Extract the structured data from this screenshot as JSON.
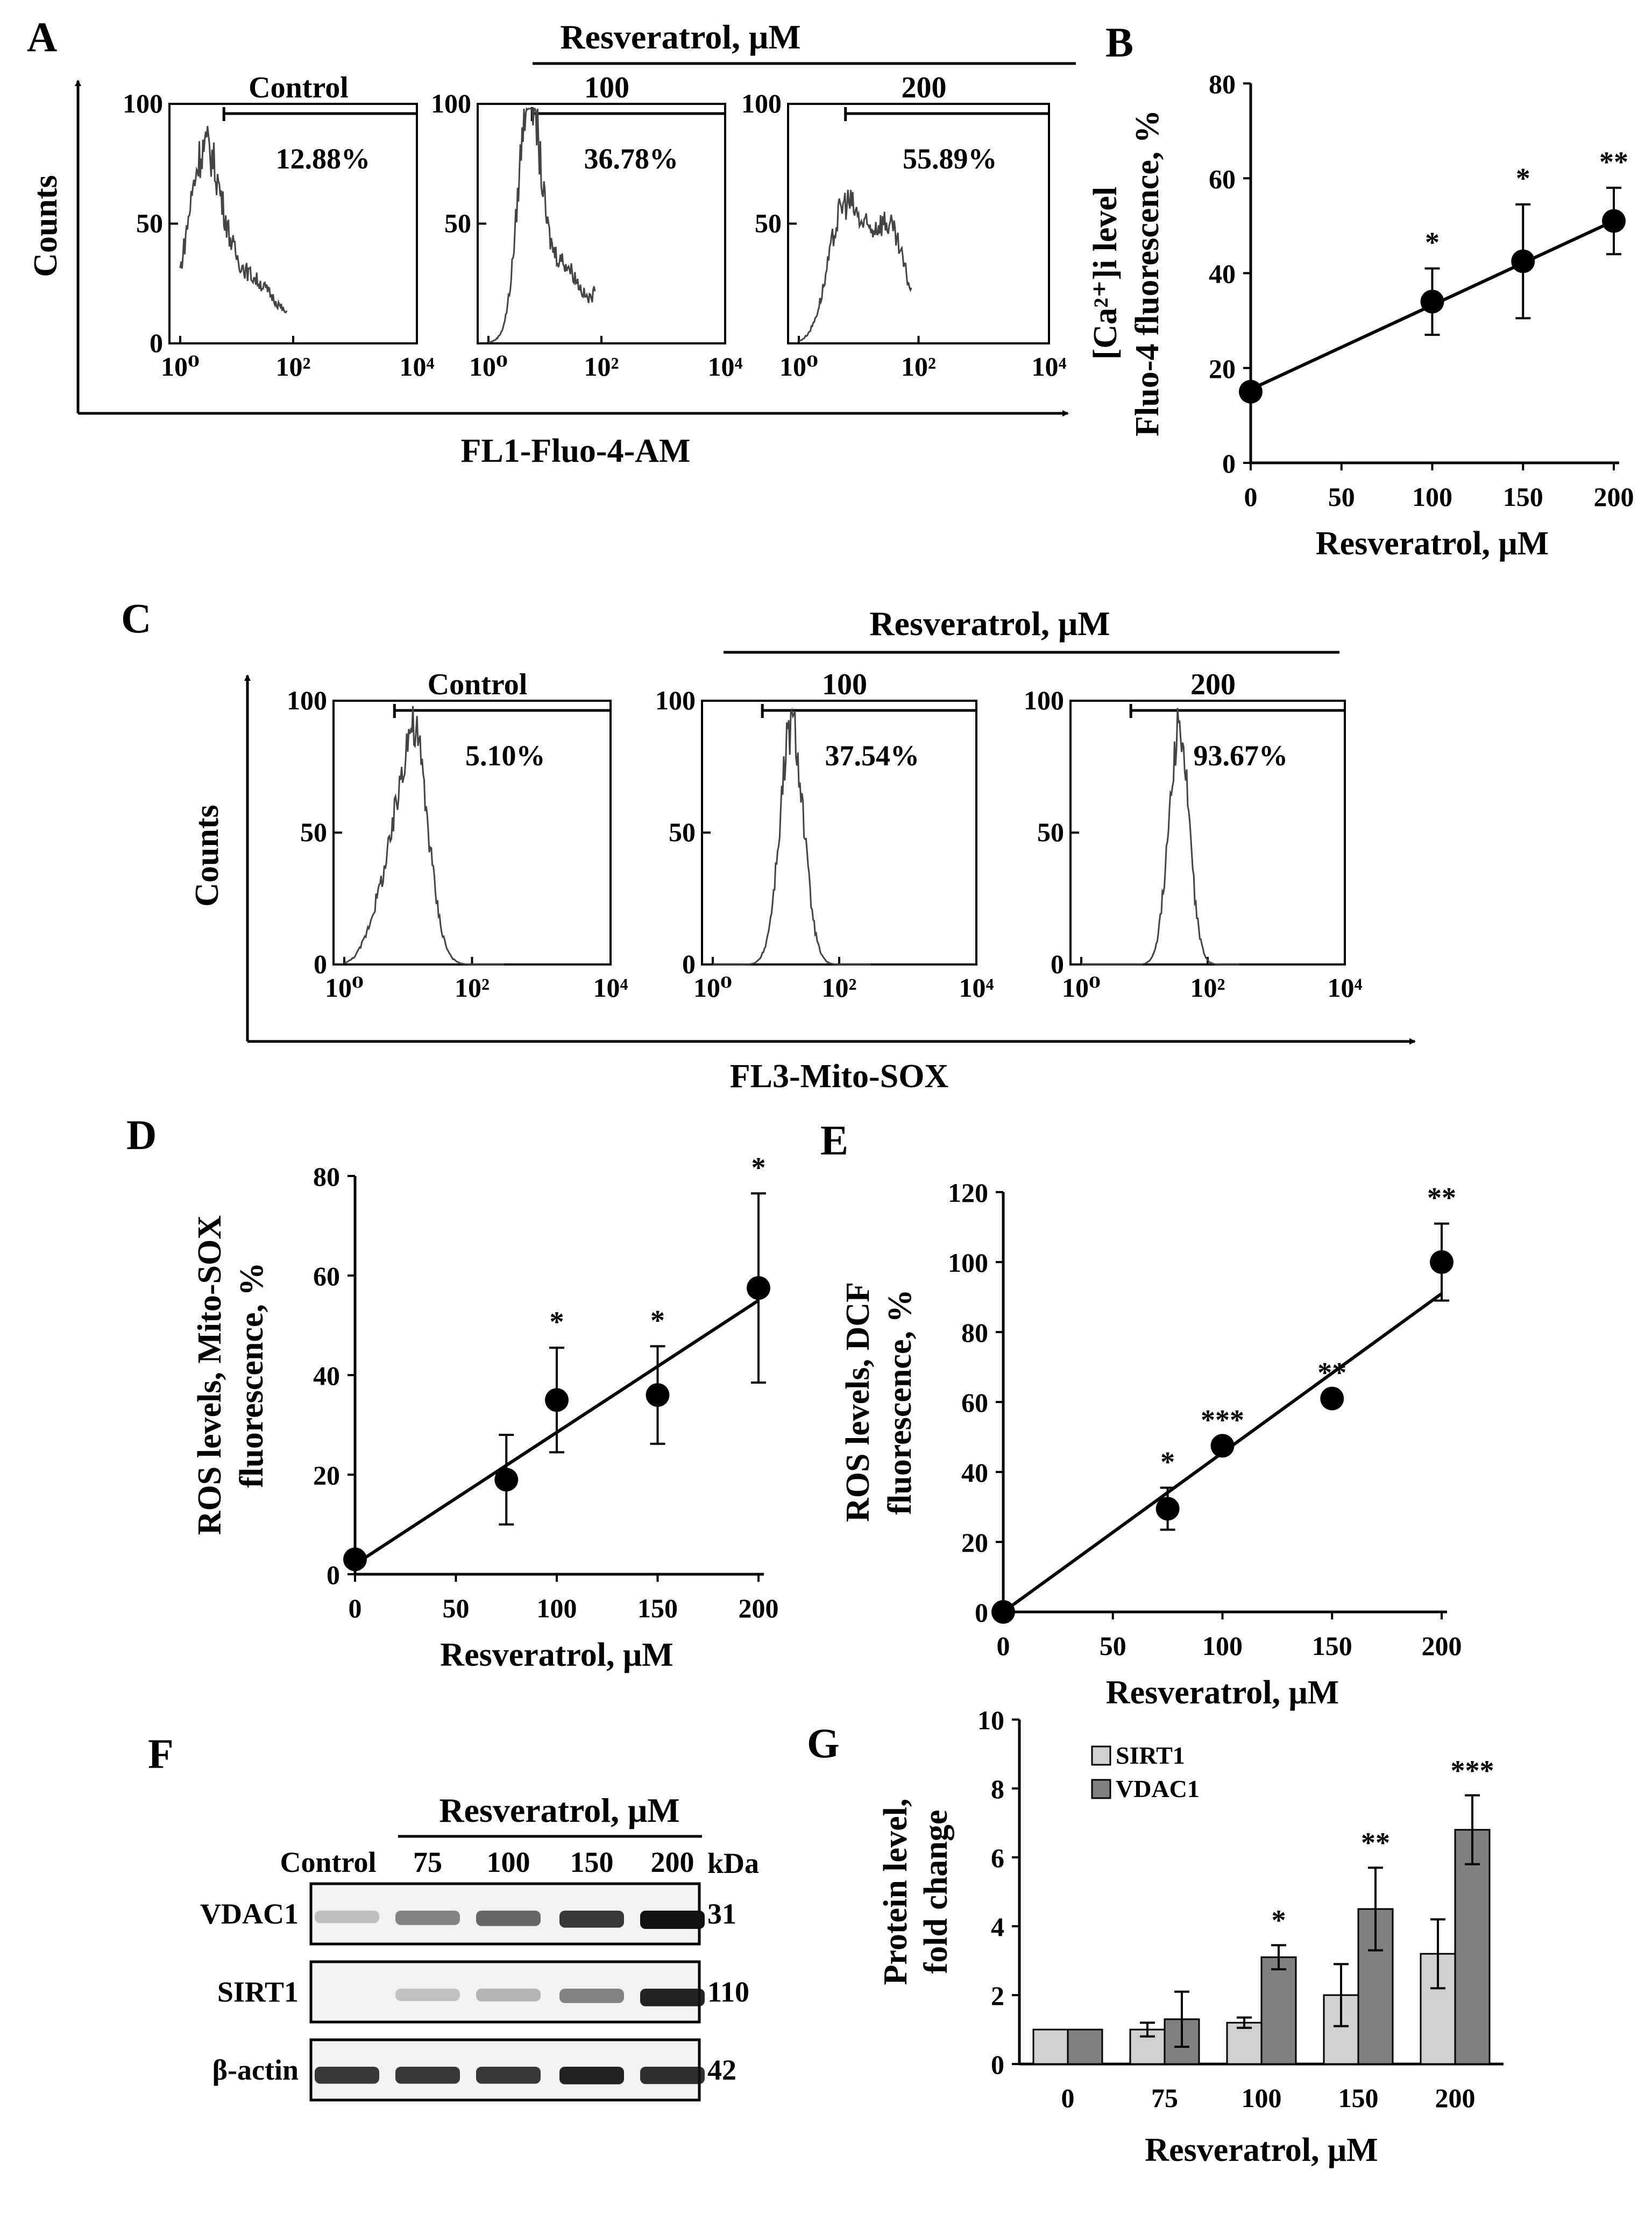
{
  "colors": {
    "axis": "#000000",
    "histogram": "#444444",
    "bar_sirt1": "#d0d0d0",
    "bar_vdac1": "#808080",
    "band": "#111111"
  },
  "panels": {
    "A": {
      "label": "A",
      "group_title": "Resveratrol, μM",
      "y_axis_label": "Counts",
      "x_axis_label": "FL1-Fluo-4-AM",
      "hists": [
        {
          "name": "Control",
          "pct": "12.88%",
          "y_ticks": [
            "100",
            "50",
            "0"
          ],
          "x_ticks": [
            "10⁰",
            "10²",
            "10⁴"
          ],
          "shape": "control"
        },
        {
          "name": "100",
          "pct": "36.78%",
          "y_ticks": [
            "100",
            "50",
            ""
          ],
          "x_ticks": [
            "10⁰",
            "10²",
            "10⁴"
          ],
          "shape": "bimodal1"
        },
        {
          "name": "200",
          "pct": "55.89%",
          "y_ticks": [
            "100",
            "50",
            ""
          ],
          "x_ticks": [
            "10⁰",
            "10²",
            "10⁴"
          ],
          "shape": "bimodal2"
        }
      ]
    },
    "B": {
      "label": "B"
    },
    "C": {
      "label": "C",
      "group_title": "Resveratrol, μM",
      "y_axis_label": "Counts",
      "x_axis_label": "FL3-Mito-SOX",
      "hists": [
        {
          "name": "Control",
          "pct": "5.10%",
          "y_ticks": [
            "100",
            "50",
            "0"
          ],
          "x_ticks": [
            "10⁰",
            "10²",
            "10⁴"
          ],
          "shape": "peakA"
        },
        {
          "name": "100",
          "pct": "37.54%",
          "y_ticks": [
            "100",
            "50",
            "0"
          ],
          "x_ticks": [
            "10⁰",
            "10²",
            "10⁴"
          ],
          "shape": "peakB"
        },
        {
          "name": "200",
          "pct": "93.67%",
          "y_ticks": [
            "100",
            "50",
            "0"
          ],
          "x_ticks": [
            "10⁰",
            "10²",
            "10⁴"
          ],
          "shape": "peakC"
        }
      ]
    },
    "D": {
      "label": "D"
    },
    "E": {
      "label": "E"
    },
    "F": {
      "label": "F",
      "title": "Resveratrol, μM",
      "lanes": [
        "Control",
        "75",
        "100",
        "150",
        "200"
      ],
      "kda_label": "kDa",
      "rows": [
        {
          "name": "VDAC1",
          "kda": "31",
          "intensities": [
            0.1,
            0.4,
            0.55,
            0.8,
            1.0
          ]
        },
        {
          "name": "SIRT1",
          "kda": "110",
          "intensities": [
            0.0,
            0.08,
            0.15,
            0.4,
            0.9
          ]
        },
        {
          "name": "β-actin",
          "kda": "42",
          "intensities": [
            0.8,
            0.8,
            0.8,
            0.9,
            0.85
          ]
        }
      ]
    },
    "G": {
      "label": "G"
    }
  },
  "chart_data": [
    {
      "id": "B",
      "type": "scatter",
      "title": "",
      "xlabel": "Resveratrol, μM",
      "ylabel_lines": [
        "[Ca²⁺]i level",
        "Fluo-4 fluorescence, %"
      ],
      "x_ticks": [
        0,
        50,
        100,
        150,
        200
      ],
      "y_ticks": [
        0,
        20,
        40,
        60,
        80
      ],
      "xlim": [
        0,
        200
      ],
      "ylim": [
        0,
        80
      ],
      "points": [
        {
          "x": 0,
          "y": 15,
          "err": 0,
          "sig": ""
        },
        {
          "x": 100,
          "y": 34,
          "err": 7,
          "sig": "*"
        },
        {
          "x": 150,
          "y": 42.5,
          "err": 12,
          "sig": "*"
        },
        {
          "x": 200,
          "y": 51,
          "err": 7,
          "sig": "**"
        }
      ],
      "fit": [
        [
          0,
          15.5
        ],
        [
          200,
          51
        ]
      ]
    },
    {
      "id": "D",
      "type": "scatter",
      "title": "",
      "xlabel": "Resveratrol, μM",
      "ylabel_lines": [
        "ROS levels, Mito-SOX",
        "fluorescence, %"
      ],
      "x_ticks": [
        0,
        50,
        100,
        150,
        200
      ],
      "y_ticks": [
        0,
        20,
        40,
        60,
        80
      ],
      "xlim": [
        0,
        200
      ],
      "ylim": [
        0,
        80
      ],
      "points": [
        {
          "x": 0,
          "y": 3,
          "err": 0,
          "sig": ""
        },
        {
          "x": 75,
          "y": 19,
          "err": 9,
          "sig": ""
        },
        {
          "x": 100,
          "y": 35,
          "err": 10.5,
          "sig": "*"
        },
        {
          "x": 150,
          "y": 36,
          "err": 9.8,
          "sig": "*"
        },
        {
          "x": 200,
          "y": 57.5,
          "err": 19,
          "sig": "*"
        }
      ],
      "fit": [
        [
          0,
          2
        ],
        [
          200,
          55
        ]
      ]
    },
    {
      "id": "E",
      "type": "scatter",
      "title": "",
      "xlabel": "Resveratrol, μM",
      "ylabel_lines": [
        "ROS levels, DCF",
        "fluorescence, %"
      ],
      "x_ticks": [
        0,
        50,
        100,
        150,
        200
      ],
      "y_ticks": [
        0,
        20,
        40,
        60,
        80,
        100,
        120
      ],
      "xlim": [
        0,
        200
      ],
      "ylim": [
        0,
        120
      ],
      "points": [
        {
          "x": 0,
          "y": 0,
          "err": 0,
          "sig": ""
        },
        {
          "x": 75,
          "y": 29.5,
          "err": 6,
          "sig": "*"
        },
        {
          "x": 100,
          "y": 47.5,
          "err": 0,
          "sig": "***"
        },
        {
          "x": 150,
          "y": 61,
          "err": 0,
          "sig": "**"
        },
        {
          "x": 200,
          "y": 100,
          "err": 11,
          "sig": "**"
        }
      ],
      "fit": [
        [
          0,
          0
        ],
        [
          200,
          91
        ]
      ]
    },
    {
      "id": "G",
      "type": "bar",
      "title": "",
      "xlabel": "Resveratrol, μM",
      "ylabel_lines": [
        "Protein level,",
        "fold change"
      ],
      "categories": [
        "0",
        "75",
        "100",
        "150",
        "200"
      ],
      "y_ticks": [
        0,
        2,
        4,
        6,
        8,
        10
      ],
      "ylim": [
        0,
        10
      ],
      "legend_position": "top-left",
      "series": [
        {
          "name": "SIRT1",
          "color": "#d0d0d0",
          "values": [
            1.0,
            1.0,
            1.2,
            2.0,
            3.2
          ],
          "errors": [
            0,
            0.2,
            0.15,
            0.9,
            1.0
          ],
          "sig": [
            "",
            "",
            "",
            "",
            ""
          ]
        },
        {
          "name": "VDAC1",
          "color": "#808080",
          "values": [
            1.0,
            1.3,
            3.1,
            4.5,
            6.8
          ],
          "errors": [
            0,
            0.8,
            0.35,
            1.2,
            1.0
          ],
          "sig": [
            "",
            "",
            "*",
            "**",
            "***"
          ]
        }
      ]
    }
  ]
}
